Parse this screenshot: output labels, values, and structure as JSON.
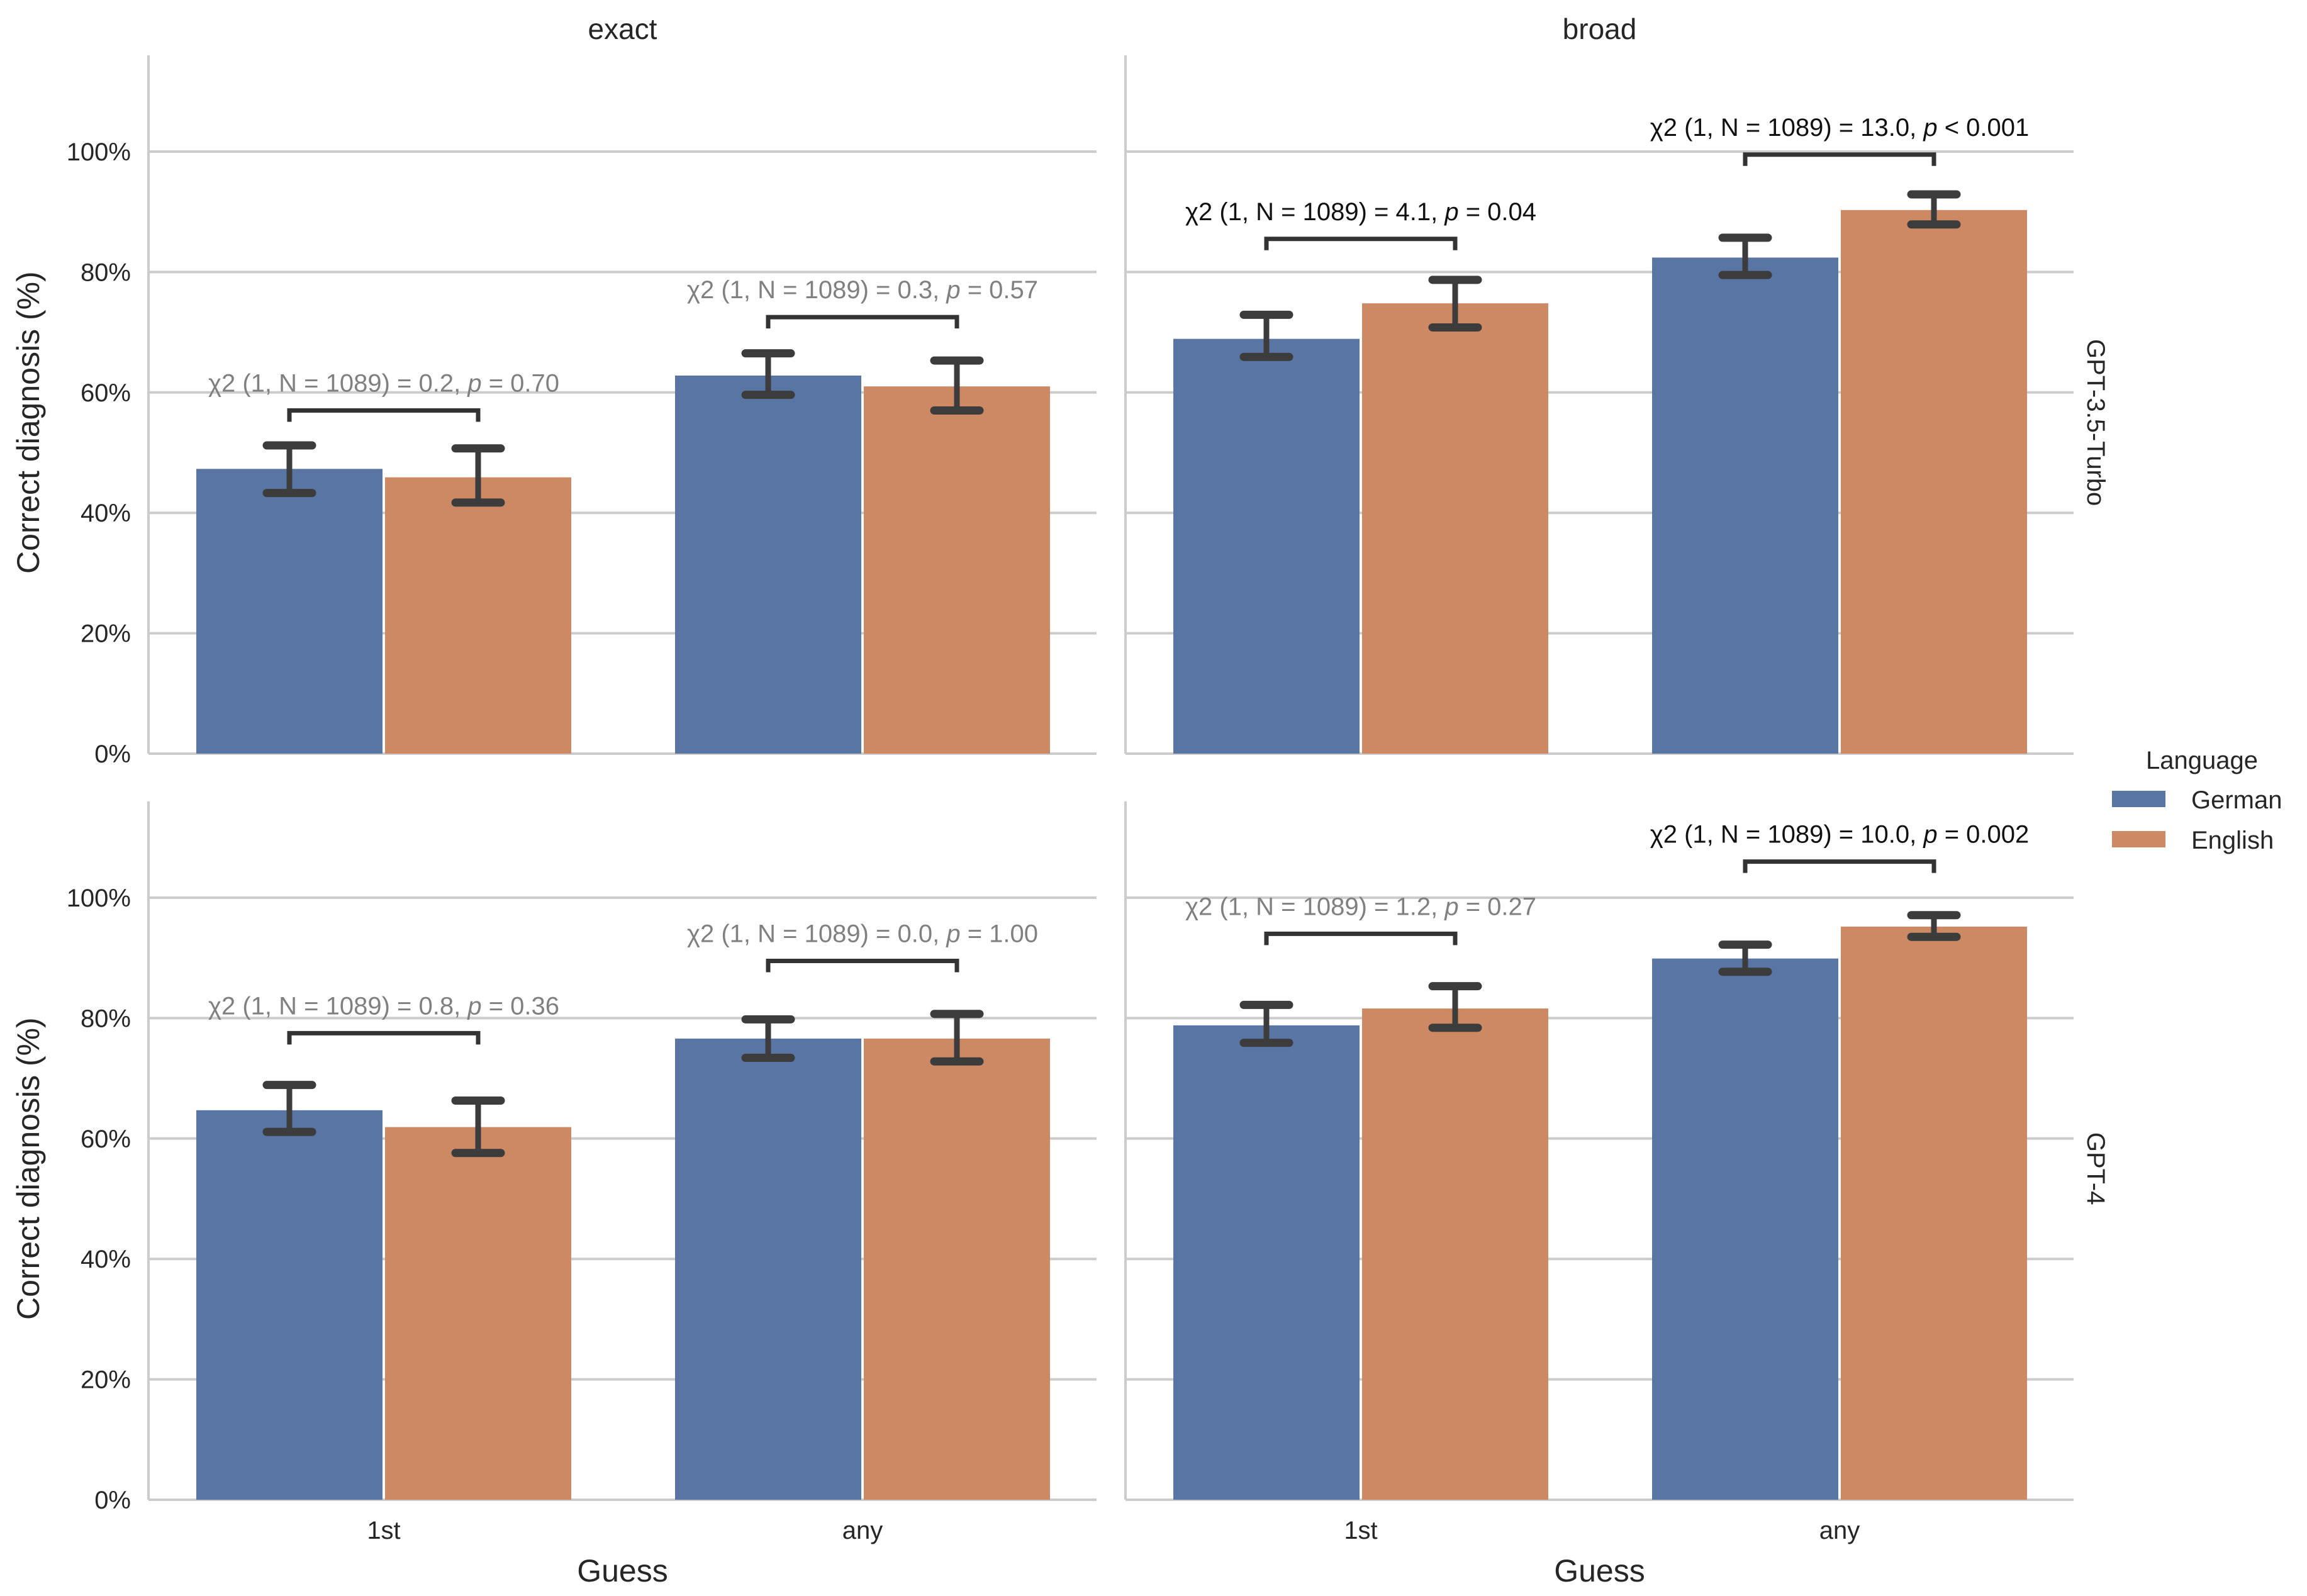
{
  "chart_data": {
    "type": "bar",
    "layout": "facet-grid 2x2",
    "column_titles": [
      "exact",
      "broad"
    ],
    "row_titles": [
      "GPT-3.5-Turbo",
      "GPT-4"
    ],
    "xlabel": "Guess",
    "ylabel": "Correct diagnosis (%)",
    "categories": [
      "1st",
      "any"
    ],
    "ylim": [
      0,
      116
    ],
    "yticks": [
      0,
      20,
      40,
      60,
      80,
      100
    ],
    "ytick_labels": [
      "0%",
      "20%",
      "40%",
      "60%",
      "80%",
      "100%"
    ],
    "grid": "horizontal",
    "legend": {
      "title": "Language",
      "placement": "right",
      "entries": [
        {
          "label": "German",
          "color": "#5875a4"
        },
        {
          "label": "English",
          "color": "#cc8963"
        }
      ]
    },
    "panels": [
      {
        "row": "GPT-3.5-Turbo",
        "col": "exact",
        "series": [
          {
            "name": "German",
            "values": [
              47.3,
              62.8
            ],
            "ci_low": [
              43.3,
              59.6
            ],
            "ci_high": [
              51.2,
              66.5
            ]
          },
          {
            "name": "English",
            "values": [
              45.9,
              61.0
            ],
            "ci_low": [
              41.7,
              57.0
            ],
            "ci_high": [
              50.7,
              65.3
            ]
          }
        ],
        "annotations": [
          {
            "stat": "χ2 (1, N = 1089) = 0.2, ",
            "p": "p",
            "rest": " = 0.70",
            "significant": false,
            "level": 57
          },
          {
            "stat": "χ2 (1, N = 1089) = 0.3, ",
            "p": "p",
            "rest": " = 0.57",
            "significant": false,
            "level": 72.5
          }
        ]
      },
      {
        "row": "GPT-3.5-Turbo",
        "col": "broad",
        "series": [
          {
            "name": "German",
            "values": [
              68.9,
              82.4
            ],
            "ci_low": [
              65.9,
              79.5
            ],
            "ci_high": [
              72.9,
              85.7
            ]
          },
          {
            "name": "English",
            "values": [
              74.8,
              90.3
            ],
            "ci_low": [
              70.8,
              87.9
            ],
            "ci_high": [
              78.7,
              92.9
            ]
          }
        ],
        "annotations": [
          {
            "stat": "χ2 (1, N = 1089) = 4.1, ",
            "p": "p",
            "rest": " = 0.04",
            "significant": true,
            "level": 85.5
          },
          {
            "stat": "χ2 (1, N = 1089) = 13.0, ",
            "p": "p",
            "rest": " < 0.001",
            "significant": true,
            "level": 99.5
          }
        ]
      },
      {
        "row": "GPT-4",
        "col": "exact",
        "series": [
          {
            "name": "German",
            "values": [
              64.7,
              76.6
            ],
            "ci_low": [
              61.1,
              73.4
            ],
            "ci_high": [
              68.9,
              79.8
            ]
          },
          {
            "name": "English",
            "values": [
              61.9,
              76.6
            ],
            "ci_low": [
              57.6,
              72.8
            ],
            "ci_high": [
              66.3,
              80.7
            ]
          }
        ],
        "annotations": [
          {
            "stat": "χ2 (1, N = 1089) = 0.8, ",
            "p": "p",
            "rest": " = 0.36",
            "significant": false,
            "level": 77.5
          },
          {
            "stat": "χ2 (1, N = 1089) = 0.0, ",
            "p": "p",
            "rest": " = 1.00",
            "significant": false,
            "level": 89.5
          }
        ]
      },
      {
        "row": "GPT-4",
        "col": "broad",
        "series": [
          {
            "name": "German",
            "values": [
              78.8,
              89.9
            ],
            "ci_low": [
              75.9,
              87.7
            ],
            "ci_high": [
              82.2,
              92.2
            ]
          },
          {
            "name": "English",
            "values": [
              81.6,
              95.2
            ],
            "ci_low": [
              78.4,
              93.5
            ],
            "ci_high": [
              85.3,
              97.1
            ]
          }
        ],
        "annotations": [
          {
            "stat": "χ2 (1, N = 1089) = 1.2, ",
            "p": "p",
            "rest": " = 0.27",
            "significant": false,
            "level": 94
          },
          {
            "stat": "χ2 (1, N = 1089) = 10.0, ",
            "p": "p",
            "rest": " = 0.002",
            "significant": true,
            "level": 106
          }
        ]
      }
    ]
  }
}
